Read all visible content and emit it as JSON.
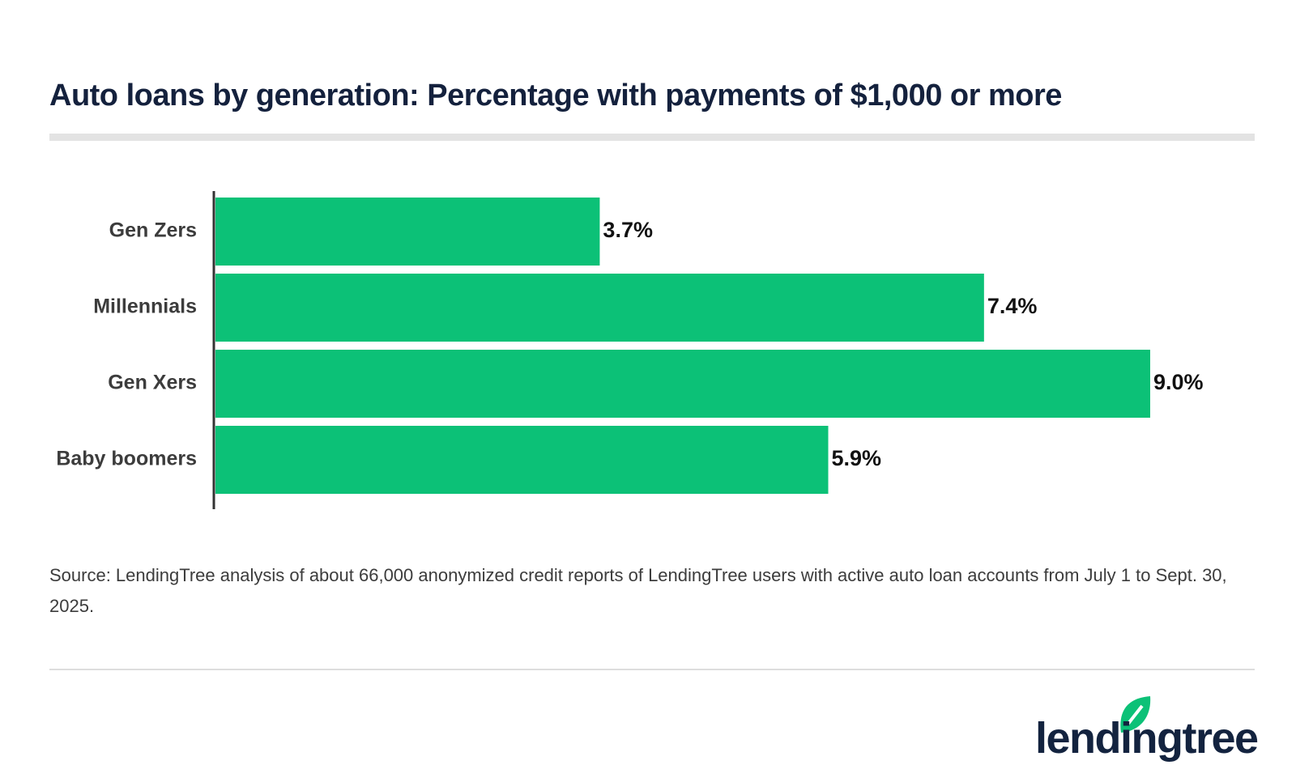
{
  "chart_data": {
    "type": "hbar",
    "title": "Auto loans by generation: Percentage with payments of $1,000 or more",
    "categories": [
      "Gen Zers",
      "Millennials",
      "Gen Xers",
      "Baby boomers"
    ],
    "values": [
      3.7,
      7.4,
      9.0,
      5.9
    ],
    "value_labels": [
      "3.7%",
      "7.4%",
      "9.0%",
      "5.9%"
    ],
    "color": "#0cc177",
    "source": "Source: LendingTree analysis of about 66,000 anonymized credit reports of LendingTree users with active auto loan accounts from July 1 to Sept. 30, 2025.",
    "logo": "lendingtree"
  }
}
